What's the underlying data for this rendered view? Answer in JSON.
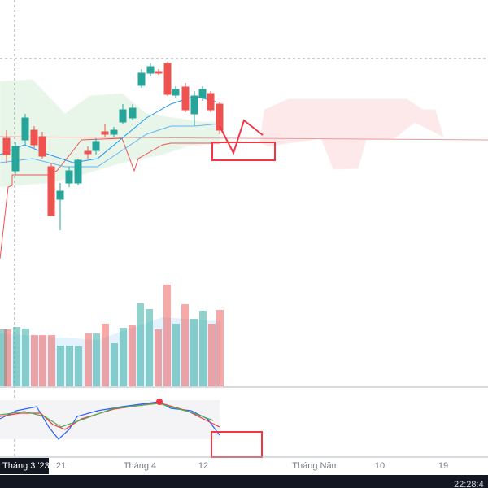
{
  "x_axis": {
    "labels": [
      "Tháng 3 '23",
      "21",
      "Tháng 4",
      "12",
      "Tháng Năm",
      "10",
      "19"
    ]
  },
  "status_bar": {
    "clock": "22:28:4"
  }
}
